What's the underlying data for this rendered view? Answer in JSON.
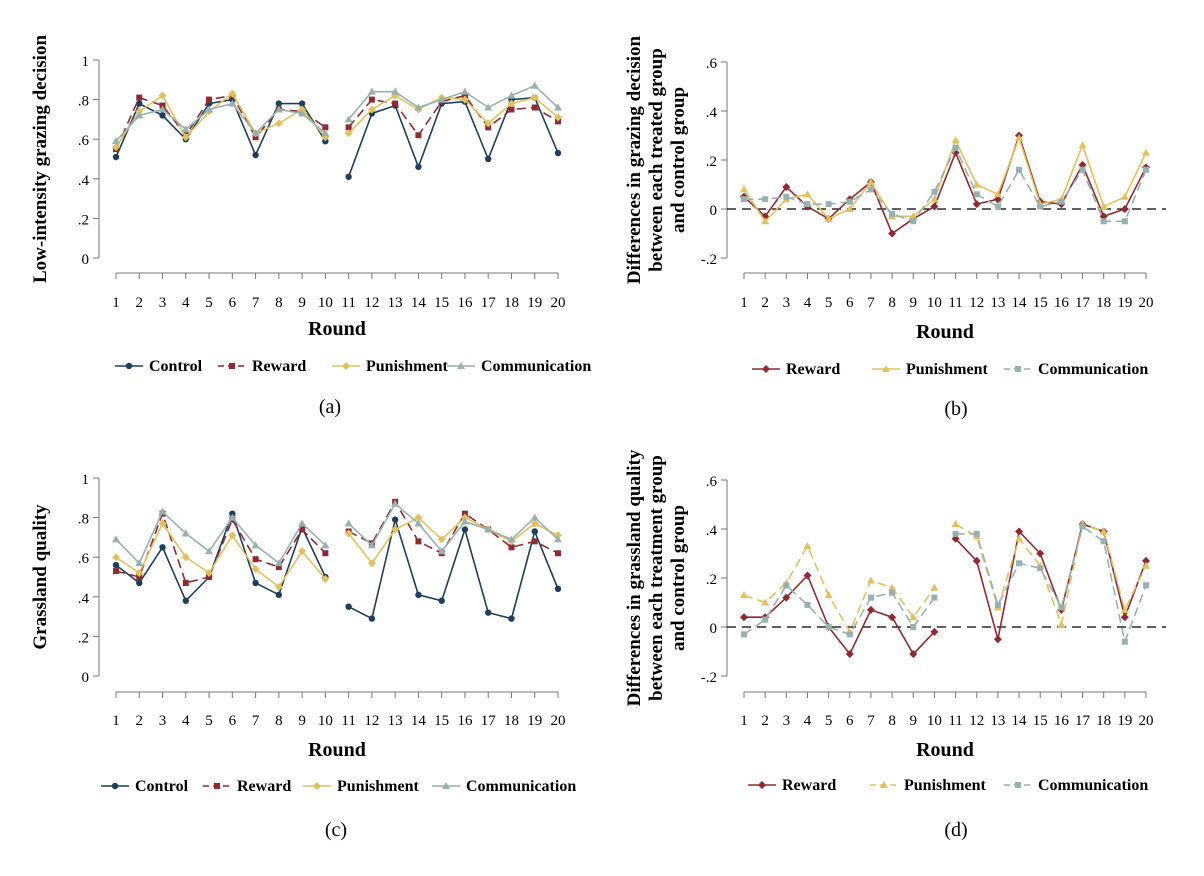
{
  "colors": {
    "Control": "#1f3e5a",
    "Reward": "#8c2b34",
    "Punishment": "#e0c060",
    "Communication": "#97b0b0"
  },
  "chart_data": [
    {
      "id": "a",
      "type": "line",
      "panel_label": "(a)",
      "title": "",
      "xlabel": "Round",
      "ylabel": "Low-intensity grazing decision",
      "ylabel_lines": [
        "Low-intensity grazing decision"
      ],
      "ylim": [
        0,
        1
      ],
      "yticks": [
        0,
        0.2,
        0.4,
        0.6,
        0.8,
        1
      ],
      "ytick_labels": [
        "0",
        ".2",
        ".4",
        ".6",
        ".8",
        "1"
      ],
      "x": [
        1,
        2,
        3,
        4,
        5,
        6,
        7,
        8,
        9,
        10,
        11,
        12,
        13,
        14,
        15,
        16,
        17,
        18,
        19,
        20
      ],
      "segments": [
        [
          1,
          10
        ],
        [
          11,
          20
        ]
      ],
      "zero_line": false,
      "legend": [
        "Control",
        "Reward",
        "Punishment",
        "Communication"
      ],
      "series": [
        {
          "name": "Control",
          "marker": "circle",
          "dash": "solid",
          "values": [
            0.51,
            0.78,
            0.72,
            0.6,
            0.78,
            0.8,
            0.52,
            0.78,
            0.78,
            0.59,
            0.41,
            0.73,
            0.77,
            0.46,
            0.78,
            0.79,
            0.5,
            0.8,
            0.81,
            0.53
          ]
        },
        {
          "name": "Reward",
          "marker": "square",
          "dash": "longdash",
          "values": [
            0.55,
            0.81,
            0.77,
            0.62,
            0.8,
            0.82,
            0.61,
            0.75,
            0.74,
            0.66,
            0.66,
            0.8,
            0.78,
            0.62,
            0.79,
            0.82,
            0.66,
            0.75,
            0.76,
            0.69
          ]
        },
        {
          "name": "Punishment",
          "marker": "diamond",
          "dash": "solid",
          "values": [
            0.56,
            0.74,
            0.82,
            0.61,
            0.74,
            0.83,
            0.63,
            0.68,
            0.75,
            0.61,
            0.63,
            0.75,
            0.82,
            0.75,
            0.81,
            0.8,
            0.68,
            0.78,
            0.81,
            0.71
          ]
        },
        {
          "name": "Communication",
          "marker": "triangle",
          "dash": "solid",
          "values": [
            0.59,
            0.72,
            0.75,
            0.65,
            0.75,
            0.78,
            0.63,
            0.75,
            0.73,
            0.63,
            0.7,
            0.84,
            0.84,
            0.76,
            0.8,
            0.84,
            0.76,
            0.82,
            0.87,
            0.76
          ]
        }
      ]
    },
    {
      "id": "b",
      "type": "line",
      "panel_label": "(b)",
      "title": "",
      "xlabel": "Round",
      "ylabel": "Differences in grazing decision between each treated group and control group",
      "ylabel_lines": [
        "Differences in grazing decision",
        "between each treated group",
        "and control group"
      ],
      "ylim": [
        -0.2,
        0.6
      ],
      "yticks": [
        -0.2,
        0,
        0.2,
        0.4,
        0.6
      ],
      "ytick_labels": [
        "-.2",
        "0",
        ".2",
        ".4",
        ".6"
      ],
      "x": [
        1,
        2,
        3,
        4,
        5,
        6,
        7,
        8,
        9,
        10,
        11,
        12,
        13,
        14,
        15,
        16,
        17,
        18,
        19,
        20
      ],
      "segments": [
        [
          1,
          20
        ]
      ],
      "zero_line": true,
      "legend": [
        "Reward",
        "Punishment",
        "Communication"
      ],
      "series": [
        {
          "name": "Reward",
          "marker": "diamond",
          "dash": "solid",
          "values": [
            0.05,
            -0.03,
            0.09,
            0.01,
            -0.04,
            0.04,
            0.11,
            -0.1,
            -0.04,
            0.01,
            0.23,
            0.02,
            0.04,
            0.3,
            0.03,
            0.02,
            0.18,
            -0.03,
            0.0,
            0.17
          ]
        },
        {
          "name": "Punishment",
          "marker": "triangle",
          "dash": "solid",
          "values": [
            0.08,
            -0.05,
            0.04,
            0.06,
            -0.04,
            0.0,
            0.11,
            -0.03,
            -0.03,
            0.04,
            0.28,
            0.1,
            0.06,
            0.29,
            0.02,
            0.04,
            0.26,
            0.01,
            0.05,
            0.23
          ]
        },
        {
          "name": "Communication",
          "marker": "square",
          "dash": "longdash",
          "values": [
            0.04,
            0.04,
            0.05,
            0.02,
            0.02,
            0.03,
            0.08,
            -0.02,
            -0.05,
            0.07,
            0.25,
            0.06,
            0.01,
            0.16,
            0.01,
            0.03,
            0.16,
            -0.05,
            -0.05,
            0.16
          ]
        }
      ]
    },
    {
      "id": "c",
      "type": "line",
      "panel_label": "(c)",
      "title": "",
      "xlabel": "Round",
      "ylabel": "Grassland quality",
      "ylabel_lines": [
        "Grassland quality"
      ],
      "ylim": [
        0,
        1
      ],
      "yticks": [
        0,
        0.2,
        0.4,
        0.6,
        0.8,
        1
      ],
      "ytick_labels": [
        "0",
        ".2",
        ".4",
        ".6",
        ".8",
        "1"
      ],
      "x": [
        1,
        2,
        3,
        4,
        5,
        6,
        7,
        8,
        9,
        10,
        11,
        12,
        13,
        14,
        15,
        16,
        17,
        18,
        19,
        20
      ],
      "segments": [
        [
          1,
          10
        ],
        [
          11,
          20
        ]
      ],
      "zero_line": false,
      "legend": [
        "Control",
        "Reward",
        "Punishment",
        "Communication"
      ],
      "series": [
        {
          "name": "Control",
          "marker": "circle",
          "dash": "solid",
          "values": [
            0.56,
            0.47,
            0.65,
            0.38,
            0.5,
            0.82,
            0.47,
            0.41,
            0.75,
            0.5,
            0.35,
            0.29,
            0.79,
            0.41,
            0.38,
            0.74,
            0.32,
            0.29,
            0.73,
            0.44
          ]
        },
        {
          "name": "Reward",
          "marker": "square",
          "dash": "longdash",
          "values": [
            0.53,
            0.5,
            0.82,
            0.47,
            0.5,
            0.79,
            0.59,
            0.55,
            0.74,
            0.62,
            0.73,
            0.67,
            0.88,
            0.68,
            0.62,
            0.82,
            0.74,
            0.65,
            0.68,
            0.62
          ]
        },
        {
          "name": "Punishment",
          "marker": "diamond",
          "dash": "solid",
          "values": [
            0.6,
            0.52,
            0.77,
            0.6,
            0.52,
            0.71,
            0.54,
            0.45,
            0.63,
            0.49,
            0.72,
            0.57,
            0.74,
            0.8,
            0.69,
            0.8,
            0.74,
            0.68,
            0.77,
            0.71
          ]
        },
        {
          "name": "Communication",
          "marker": "triangle",
          "dash": "solid",
          "values": [
            0.69,
            0.57,
            0.83,
            0.72,
            0.63,
            0.8,
            0.66,
            0.57,
            0.77,
            0.66,
            0.77,
            0.66,
            0.87,
            0.77,
            0.63,
            0.78,
            0.74,
            0.69,
            0.8,
            0.69
          ]
        }
      ]
    },
    {
      "id": "d",
      "type": "line",
      "panel_label": "(d)",
      "title": "",
      "xlabel": "Round",
      "ylabel": "Differences in grassland quality between each treatment group and control group",
      "ylabel_lines": [
        "Differences in grassland quality",
        "between each treatment group",
        "and control group"
      ],
      "ylim": [
        -0.2,
        0.6
      ],
      "yticks": [
        -0.2,
        0,
        0.2,
        0.4,
        0.6
      ],
      "ytick_labels": [
        "-.2",
        "0",
        ".2",
        ".4",
        ".6"
      ],
      "x": [
        1,
        2,
        3,
        4,
        5,
        6,
        7,
        8,
        9,
        10,
        11,
        12,
        13,
        14,
        15,
        16,
        17,
        18,
        19,
        20
      ],
      "segments": [
        [
          1,
          10
        ],
        [
          11,
          20
        ]
      ],
      "zero_line": true,
      "legend": [
        "Reward",
        "Punishment",
        "Communication"
      ],
      "series": [
        {
          "name": "Reward",
          "marker": "diamond",
          "dash": "solid",
          "values": [
            0.04,
            0.04,
            0.12,
            0.21,
            0.0,
            -0.11,
            0.07,
            0.04,
            -0.11,
            -0.02,
            0.36,
            0.27,
            -0.05,
            0.39,
            0.3,
            0.07,
            0.42,
            0.39,
            0.04,
            0.27
          ]
        },
        {
          "name": "Punishment",
          "marker": "triangle",
          "dash": "longdash",
          "values": [
            0.13,
            0.1,
            0.18,
            0.33,
            0.13,
            -0.02,
            0.19,
            0.16,
            0.04,
            0.16,
            0.42,
            0.37,
            0.08,
            0.36,
            0.25,
            0.01,
            0.42,
            0.39,
            0.07,
            0.25
          ]
        },
        {
          "name": "Communication",
          "marker": "square",
          "dash": "longdash",
          "values": [
            -0.03,
            0.03,
            0.17,
            0.09,
            0.0,
            -0.03,
            0.12,
            0.14,
            0.0,
            0.12,
            0.38,
            0.38,
            0.09,
            0.26,
            0.24,
            0.08,
            0.41,
            0.35,
            -0.06,
            0.17
          ]
        }
      ]
    }
  ]
}
